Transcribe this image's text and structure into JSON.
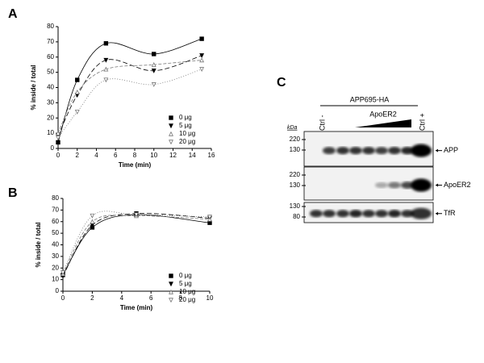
{
  "chart_data": [
    {
      "type": "scatter",
      "panel": "A",
      "xlabel": "Time (min)",
      "ylabel": "% inside / total",
      "xlim": [
        0,
        16
      ],
      "ylim": [
        0,
        80
      ],
      "xticks": [
        0,
        2,
        4,
        6,
        8,
        10,
        12,
        14,
        16
      ],
      "yticks": [
        0,
        10,
        20,
        30,
        40,
        50,
        60,
        70,
        80
      ],
      "series": [
        {
          "name": "0 μg",
          "color": "#000000",
          "marker": "square",
          "filled": true,
          "dash": "none",
          "x": [
            0,
            2,
            5,
            10,
            15
          ],
          "values": [
            4,
            45,
            69,
            62,
            72
          ]
        },
        {
          "name": "5 μg",
          "color": "#000000",
          "marker": "triangle-down",
          "filled": true,
          "dash": "6 3",
          "x": [
            0,
            2,
            5,
            10,
            15
          ],
          "values": [
            8,
            35,
            58,
            51,
            61
          ]
        },
        {
          "name": "10 μg",
          "color": "#777777",
          "marker": "triangle-up",
          "filled": false,
          "dash": "4 2",
          "x": [
            0,
            2,
            5,
            10,
            15
          ],
          "values": [
            10,
            37,
            52,
            55,
            58
          ]
        },
        {
          "name": "20 μg",
          "color": "#777777",
          "marker": "triangle-down",
          "filled": false,
          "dash": "1 2",
          "x": [
            0,
            2,
            5,
            10,
            15
          ],
          "values": [
            7,
            24,
            45,
            42,
            52
          ]
        }
      ]
    },
    {
      "type": "scatter",
      "panel": "B",
      "xlabel": "Time (min)",
      "ylabel": "% inside / total",
      "xlim": [
        0,
        10
      ],
      "ylim": [
        0,
        80
      ],
      "xticks": [
        0,
        2,
        4,
        6,
        8,
        10
      ],
      "yticks": [
        0,
        10,
        20,
        30,
        40,
        50,
        60,
        70,
        80
      ],
      "series": [
        {
          "name": "0 μg",
          "color": "#000000",
          "marker": "square",
          "filled": true,
          "dash": "none",
          "x": [
            0,
            2,
            5,
            10
          ],
          "values": [
            14,
            55,
            66,
            59
          ]
        },
        {
          "name": "5 μg",
          "color": "#000000",
          "marker": "triangle-down",
          "filled": true,
          "dash": "6 3",
          "x": [
            0,
            2,
            5,
            10
          ],
          "values": [
            13,
            57,
            67,
            63
          ]
        },
        {
          "name": "10 μg",
          "color": "#777777",
          "marker": "triangle-up",
          "filled": false,
          "dash": "4 2",
          "x": [
            0,
            2,
            5,
            10
          ],
          "values": [
            15,
            60,
            65,
            62
          ]
        },
        {
          "name": "20 μg",
          "color": "#777777",
          "marker": "triangle-down",
          "filled": false,
          "dash": "1 2",
          "x": [
            0,
            2,
            5,
            10
          ],
          "values": [
            16,
            65,
            66,
            64
          ]
        }
      ]
    }
  ],
  "blot": {
    "panel": "C",
    "construct": "APP695-HA",
    "gradient": "ApoER2",
    "ctrl_neg": "Ctrl -",
    "ctrl_pos": "Ctrl +",
    "unit": "kDa",
    "strips": [
      {
        "label": "APP",
        "markers": [
          "220",
          "130"
        ]
      },
      {
        "label": "ApoER2",
        "markers": [
          "220",
          "130"
        ]
      },
      {
        "label": "TfR",
        "markers": [
          "130",
          "80"
        ]
      }
    ]
  }
}
